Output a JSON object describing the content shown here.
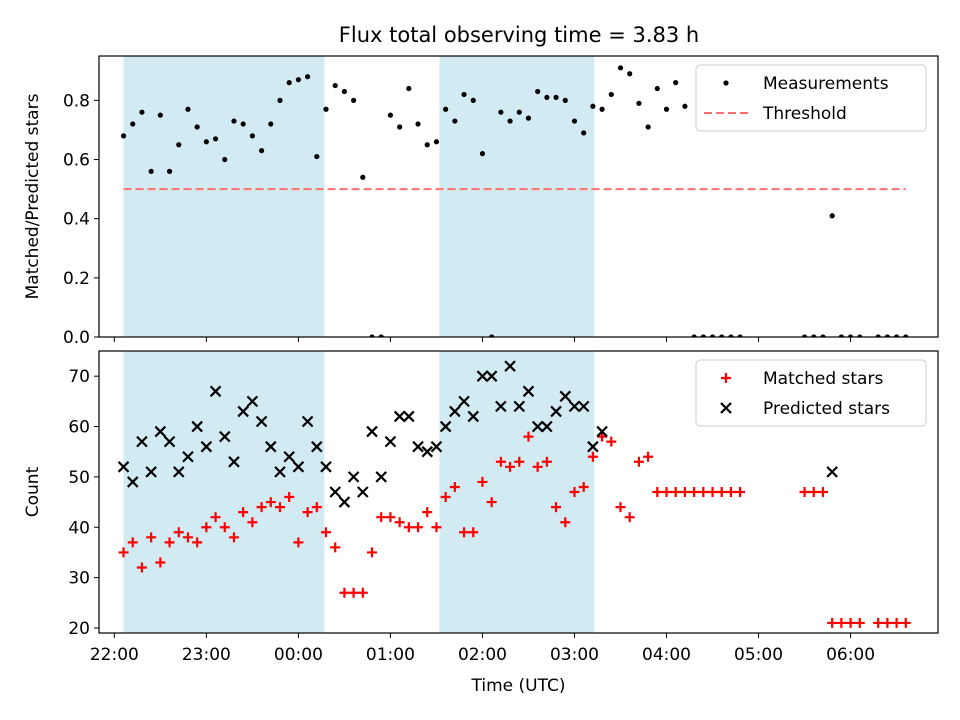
{
  "title": "Flux total observing time = 3.83 h",
  "chart_data": [
    {
      "type": "scatter",
      "title": "Flux total observing time = 3.83 h",
      "ylabel": "Matched/Predicted stars",
      "xlabel": "",
      "xlim": [
        "21:50",
        "06:57"
      ],
      "ylim": [
        0,
        0.95
      ],
      "yticks": [
        0.0,
        0.2,
        0.4,
        0.6,
        0.8
      ],
      "ytick_labels": [
        "0.0",
        "0.2",
        "0.4",
        "0.6",
        "0.8"
      ],
      "shaded_intervals": [
        [
          "22:06",
          "00:17"
        ],
        [
          "01:32",
          "03:13"
        ]
      ],
      "shade_color": "#add8e6",
      "legend": {
        "position": "top-right",
        "entries": [
          "Measurements",
          "Threshold"
        ]
      },
      "series": [
        {
          "name": "Measurements",
          "marker": "dot",
          "color": "#000000",
          "x": [
            "22:06",
            "22:12",
            "22:18",
            "22:24",
            "22:30",
            "22:36",
            "22:42",
            "22:48",
            "22:54",
            "23:00",
            "23:06",
            "23:12",
            "23:18",
            "23:24",
            "23:30",
            "23:36",
            "23:42",
            "23:48",
            "23:54",
            "00:00",
            "00:06",
            "00:12",
            "00:18",
            "00:24",
            "00:30",
            "00:36",
            "00:42",
            "00:48",
            "00:54",
            "01:00",
            "01:06",
            "01:12",
            "01:18",
            "01:24",
            "01:30",
            "01:36",
            "01:42",
            "01:48",
            "01:54",
            "02:00",
            "02:06",
            "02:12",
            "02:18",
            "02:24",
            "02:30",
            "02:36",
            "02:42",
            "02:48",
            "02:54",
            "03:00",
            "03:06",
            "03:12",
            "03:18",
            "03:24",
            "03:30",
            "03:36",
            "03:42",
            "03:48",
            "03:54",
            "04:00",
            "04:06",
            "04:12",
            "04:18",
            "04:24",
            "04:30",
            "04:36",
            "04:42",
            "04:48",
            "05:30",
            "05:36",
            "05:42",
            "05:48",
            "05:54",
            "06:00",
            "06:06",
            "06:18",
            "06:24",
            "06:30",
            "06:36"
          ],
          "y": [
            0.68,
            0.72,
            0.76,
            0.56,
            0.75,
            0.56,
            0.65,
            0.77,
            0.71,
            0.66,
            0.67,
            0.6,
            0.73,
            0.72,
            0.68,
            0.63,
            0.72,
            0.8,
            0.86,
            0.87,
            0.88,
            0.61,
            0.77,
            0.85,
            0.83,
            0.8,
            0.54,
            0.0,
            0.0,
            0.75,
            0.71,
            0.84,
            0.72,
            0.65,
            0.66,
            0.77,
            0.73,
            0.82,
            0.8,
            0.62,
            0.0,
            0.76,
            0.73,
            0.76,
            0.74,
            0.83,
            0.81,
            0.81,
            0.8,
            0.73,
            0.69,
            0.78,
            0.77,
            0.82,
            0.91,
            0.89,
            0.79,
            0.71,
            0.84,
            0.77,
            0.86,
            0.78,
            0.0,
            0.0,
            0.0,
            0.0,
            0.0,
            0.0,
            0.0,
            0.0,
            0.0,
            0.41,
            0.0,
            0.0,
            0.0,
            0.0,
            0.0,
            0.0,
            0.0
          ]
        },
        {
          "name": "Threshold",
          "marker": "dashed-line",
          "color": "#ff7070",
          "x": [
            "22:06",
            "06:36"
          ],
          "y": [
            0.5,
            0.5
          ]
        }
      ]
    },
    {
      "type": "scatter",
      "title": "",
      "ylabel": "Count",
      "xlabel": "Time (UTC)",
      "xlim": [
        "21:50",
        "06:57"
      ],
      "ylim": [
        19,
        75
      ],
      "yticks": [
        20,
        30,
        40,
        50,
        60,
        70
      ],
      "ytick_labels": [
        "20",
        "30",
        "40",
        "50",
        "60",
        "70"
      ],
      "xticks": [
        "22:00",
        "23:00",
        "00:00",
        "01:00",
        "02:00",
        "03:00",
        "04:00",
        "05:00",
        "06:00"
      ],
      "xtick_labels": [
        "22:00",
        "23:00",
        "00:00",
        "01:00",
        "02:00",
        "03:00",
        "04:00",
        "05:00",
        "06:00"
      ],
      "shaded_intervals": [
        [
          "22:06",
          "00:17"
        ],
        [
          "01:32",
          "03:13"
        ]
      ],
      "shade_color": "#add8e6",
      "legend": {
        "position": "top-right",
        "entries": [
          "Matched stars",
          "Predicted stars"
        ]
      },
      "series": [
        {
          "name": "Matched stars",
          "marker": "plus",
          "color": "#ff0000",
          "x": [
            "22:06",
            "22:12",
            "22:18",
            "22:24",
            "22:30",
            "22:36",
            "22:42",
            "22:48",
            "22:54",
            "23:00",
            "23:06",
            "23:12",
            "23:18",
            "23:24",
            "23:30",
            "23:36",
            "23:42",
            "23:48",
            "23:54",
            "00:00",
            "00:06",
            "00:12",
            "00:18",
            "00:24",
            "00:30",
            "00:36",
            "00:42",
            "00:48",
            "00:54",
            "01:00",
            "01:06",
            "01:12",
            "01:18",
            "01:24",
            "01:30",
            "01:36",
            "01:42",
            "01:48",
            "01:54",
            "02:00",
            "02:06",
            "02:12",
            "02:18",
            "02:24",
            "02:30",
            "02:36",
            "02:42",
            "02:48",
            "02:54",
            "03:00",
            "03:06",
            "03:12",
            "03:18",
            "03:24",
            "03:30",
            "03:36",
            "03:42",
            "03:48",
            "03:54",
            "04:00",
            "04:06",
            "04:12",
            "04:18",
            "04:24",
            "04:30",
            "04:36",
            "04:42",
            "04:48",
            "05:30",
            "05:36",
            "05:42",
            "05:48",
            "05:54",
            "06:00",
            "06:06",
            "06:18",
            "06:24",
            "06:30",
            "06:36"
          ],
          "y": [
            35,
            37,
            32,
            38,
            33,
            37,
            39,
            38,
            37,
            40,
            42,
            40,
            38,
            43,
            41,
            44,
            45,
            44,
            46,
            37,
            43,
            44,
            39,
            36,
            27,
            27,
            27,
            35,
            42,
            42,
            41,
            40,
            40,
            43,
            40,
            46,
            48,
            39,
            39,
            49,
            45,
            53,
            52,
            53,
            58,
            52,
            53,
            44,
            41,
            47,
            48,
            54,
            58,
            57,
            44,
            42,
            53,
            54,
            47,
            47,
            47,
            47,
            47,
            47,
            47,
            47,
            47,
            47,
            47,
            47,
            47,
            21,
            21,
            21,
            21,
            21,
            21,
            21,
            21
          ]
        },
        {
          "name": "Predicted stars",
          "marker": "x",
          "color": "#000000",
          "x": [
            "22:06",
            "22:12",
            "22:18",
            "22:24",
            "22:30",
            "22:36",
            "22:42",
            "22:48",
            "22:54",
            "23:00",
            "23:06",
            "23:12",
            "23:18",
            "23:24",
            "23:30",
            "23:36",
            "23:42",
            "23:48",
            "23:54",
            "00:00",
            "00:06",
            "00:12",
            "00:18",
            "00:24",
            "00:30",
            "00:36",
            "00:42",
            "00:48",
            "00:54",
            "01:00",
            "01:06",
            "01:12",
            "01:18",
            "01:24",
            "01:30",
            "01:36",
            "01:42",
            "01:48",
            "01:54",
            "02:00",
            "02:06",
            "02:12",
            "02:18",
            "02:24",
            "02:30",
            "02:36",
            "02:42",
            "02:48",
            "02:54",
            "03:00",
            "03:06",
            "03:12",
            "03:18",
            "05:48"
          ],
          "y": [
            52,
            49,
            57,
            51,
            59,
            57,
            51,
            54,
            60,
            56,
            67,
            58,
            53,
            63,
            65,
            61,
            56,
            51,
            54,
            52,
            61,
            56,
            52,
            47,
            45,
            50,
            47,
            59,
            50,
            57,
            62,
            62,
            56,
            55,
            56,
            60,
            63,
            65,
            62,
            70,
            70,
            64,
            72,
            64,
            67,
            60,
            60,
            63,
            66,
            64,
            64,
            56,
            59,
            51
          ]
        }
      ]
    }
  ]
}
